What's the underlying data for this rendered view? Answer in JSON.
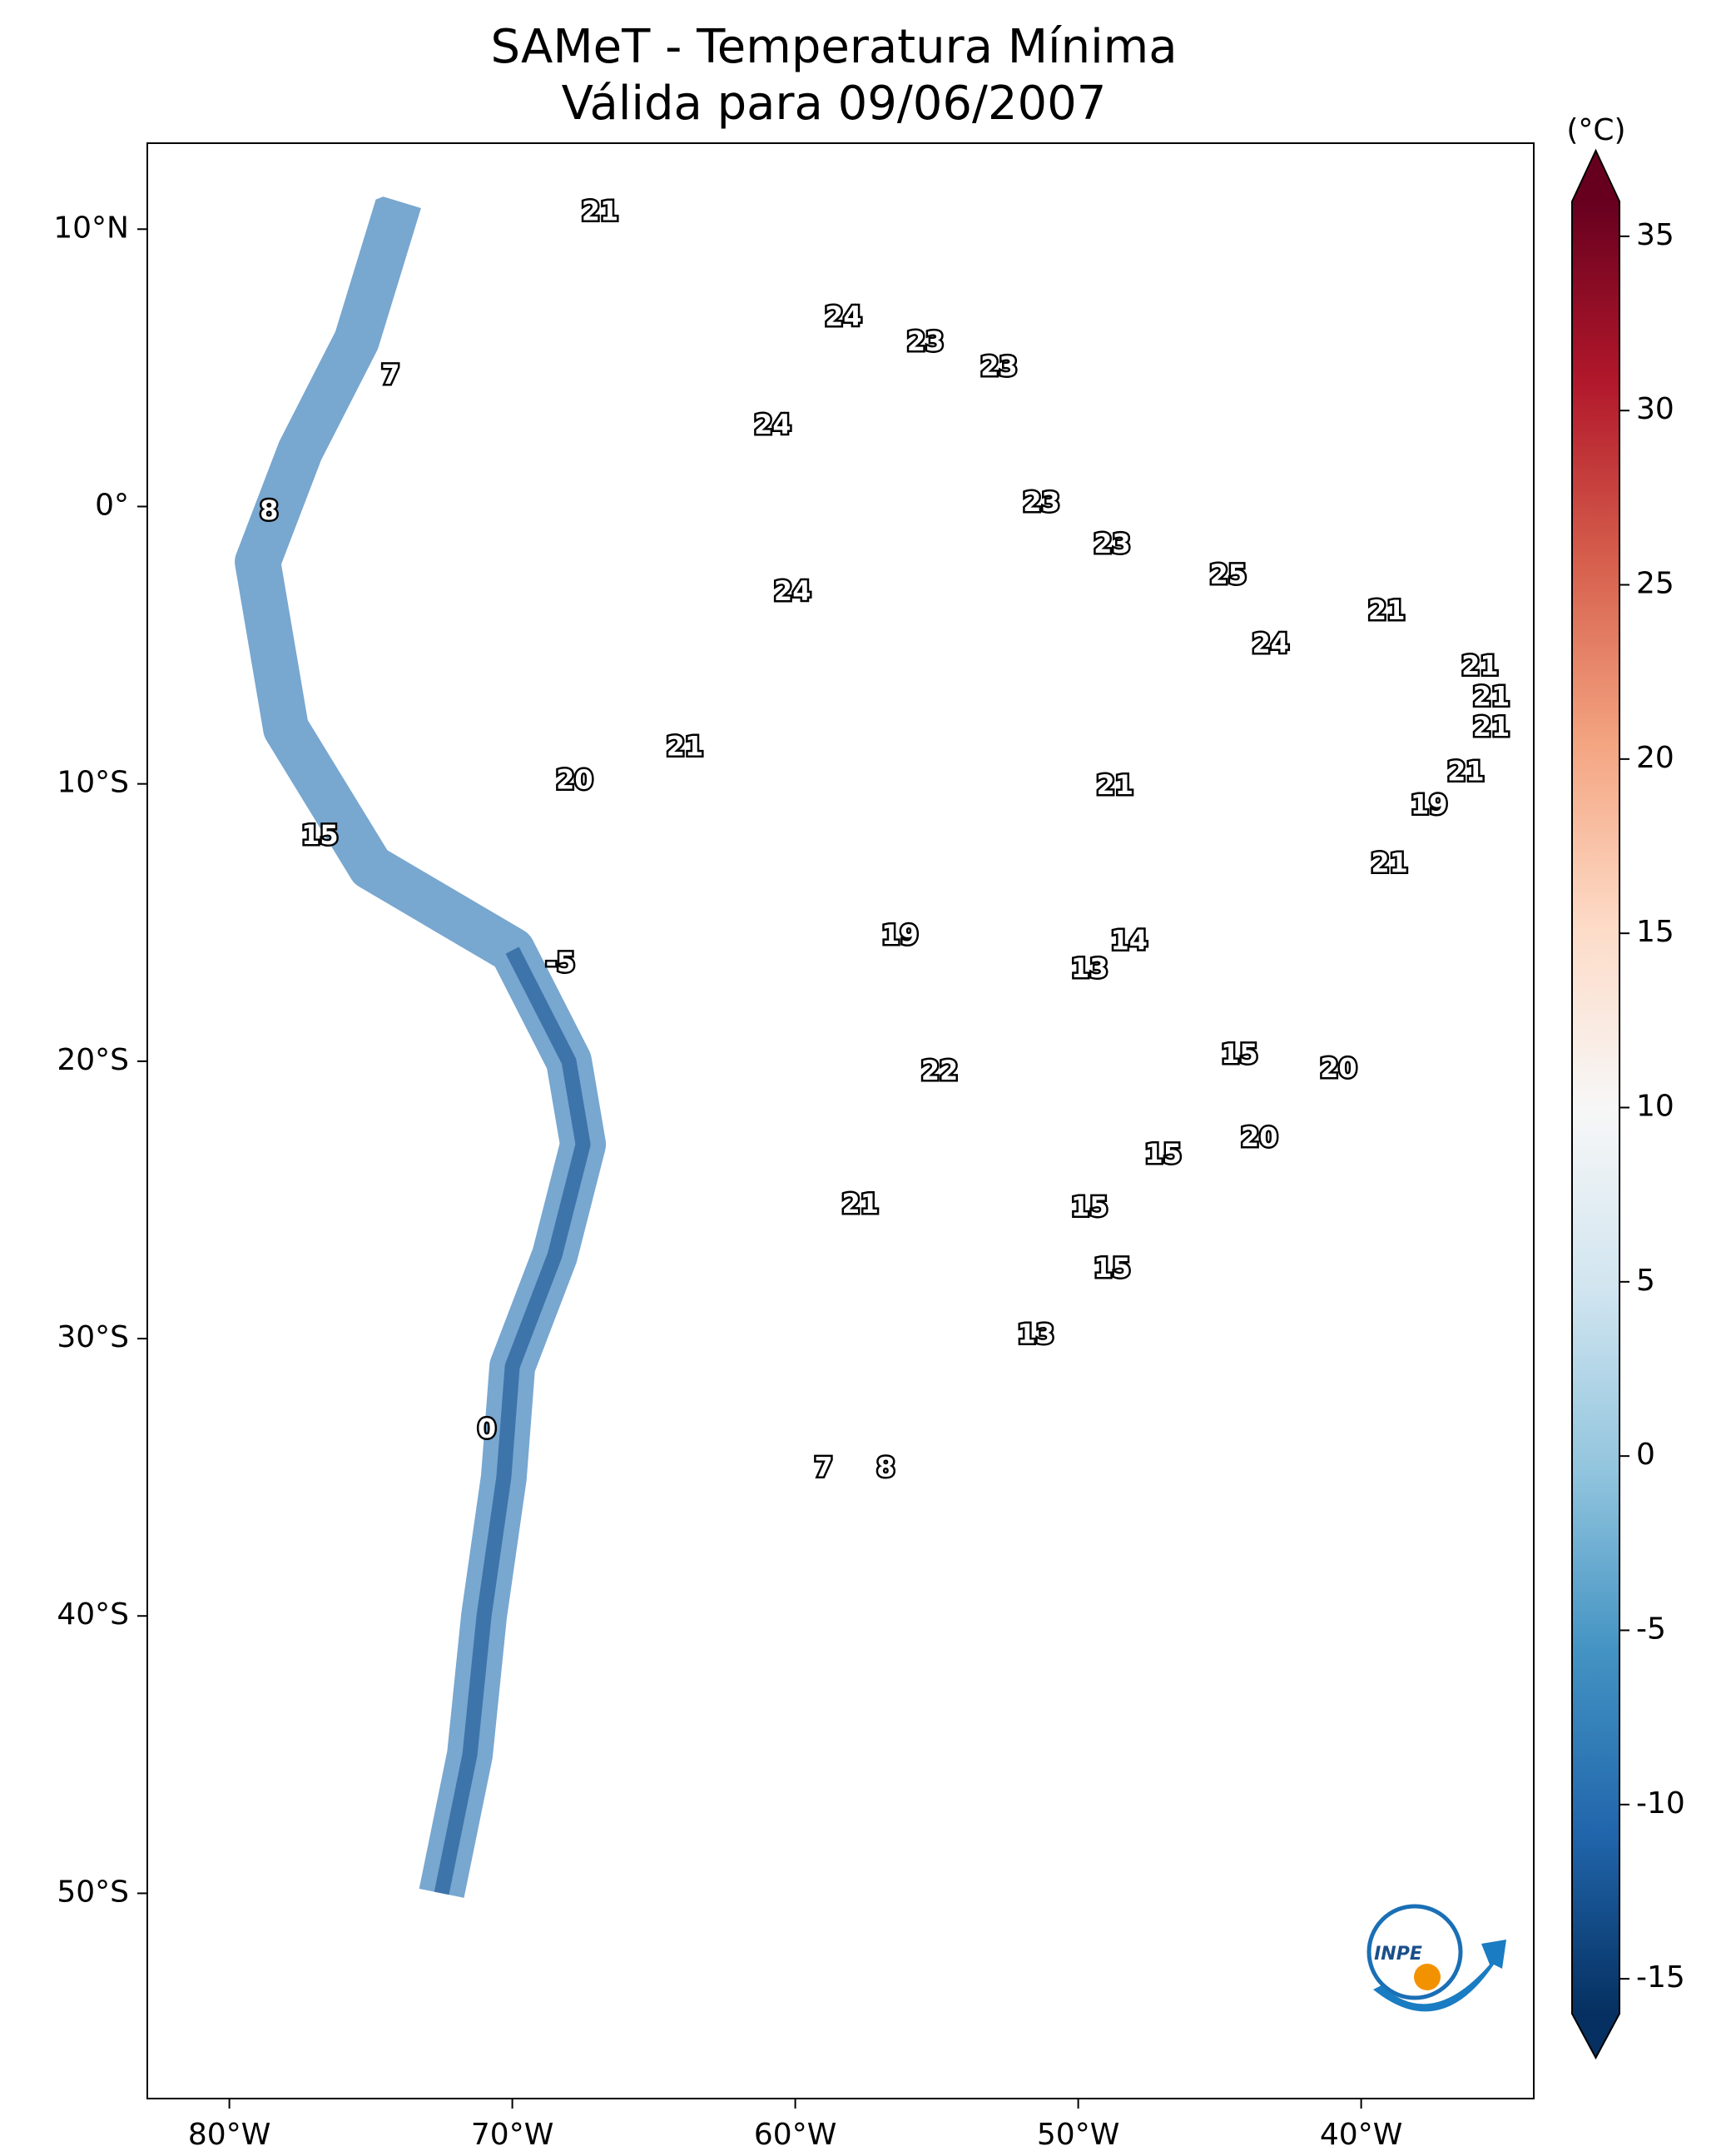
{
  "chart_data": {
    "type": "map",
    "title": "SAMeT - Temperatura Mínima",
    "subtitle": "Válida para 09/06/2007",
    "xlim": [
      -82.9,
      -33.9
    ],
    "ylim": [
      -57.4,
      13.1
    ],
    "xticks": [
      {
        "value": -80,
        "label": "80°W"
      },
      {
        "value": -70,
        "label": "70°W"
      },
      {
        "value": -60,
        "label": "60°W"
      },
      {
        "value": -50,
        "label": "50°W"
      },
      {
        "value": -40,
        "label": "40°W"
      }
    ],
    "yticks": [
      {
        "value": 10,
        "label": "10°N"
      },
      {
        "value": 0,
        "label": "0°"
      },
      {
        "value": -10,
        "label": "10°S"
      },
      {
        "value": -20,
        "label": "20°S"
      },
      {
        "value": -30,
        "label": "30°S"
      },
      {
        "value": -40,
        "label": "40°S"
      },
      {
        "value": -50,
        "label": "50°S"
      }
    ],
    "colorbar": {
      "label": "(°C)",
      "lim": [
        -16,
        36
      ],
      "ticks": [
        35,
        30,
        25,
        20,
        15,
        10,
        5,
        0,
        -5,
        -10,
        -15
      ],
      "colors": [
        "#053061",
        "#2166ac",
        "#4393c3",
        "#92c5de",
        "#d1e5f0",
        "#f7f7f7",
        "#fddbc7",
        "#f4a582",
        "#d6604d",
        "#b2182b",
        "#67001f"
      ]
    },
    "points": {
      "lon": [
        -66.9,
        -58.3,
        -55.4,
        -52.8,
        -74.3,
        -60.8,
        -78.6,
        -51.3,
        -48.8,
        -44.7,
        -60.1,
        -39.1,
        -43.2,
        -35.8,
        -35.4,
        -35.4,
        -63.9,
        -36.3,
        -48.7,
        -67.8,
        -37.6,
        -76.8,
        -39.0,
        -48.2,
        -56.3,
        -49.6,
        -68.3,
        -44.3,
        -40.8,
        -54.9,
        -43.6,
        -47.0,
        -57.7,
        -49.6,
        -48.8,
        -51.5,
        -70.9,
        -59.0,
        -56.8
      ],
      "lat": [
        10.6,
        6.8,
        5.9,
        5.0,
        4.7,
        2.9,
        -0.2,
        0.1,
        -1.4,
        -2.5,
        -3.1,
        -3.8,
        -5.0,
        -5.8,
        -6.9,
        -8.0,
        -8.7,
        -9.6,
        -10.1,
        -9.9,
        -10.8,
        -11.9,
        -12.9,
        -15.7,
        -15.5,
        -16.7,
        -16.5,
        -19.8,
        -20.3,
        -20.4,
        -22.8,
        -23.4,
        -25.2,
        -25.3,
        -27.5,
        -29.9,
        -33.3,
        -34.7,
        -34.7
      ],
      "values": [
        21,
        24,
        23,
        23,
        7,
        24,
        8,
        23,
        23,
        25,
        24,
        21,
        24,
        21,
        21,
        21,
        21,
        21,
        21,
        20,
        19,
        15,
        21,
        14,
        19,
        13,
        -5,
        15,
        20,
        22,
        20,
        15,
        21,
        15,
        15,
        13,
        0,
        7,
        8
      ]
    },
    "logo_text": "INPE"
  }
}
